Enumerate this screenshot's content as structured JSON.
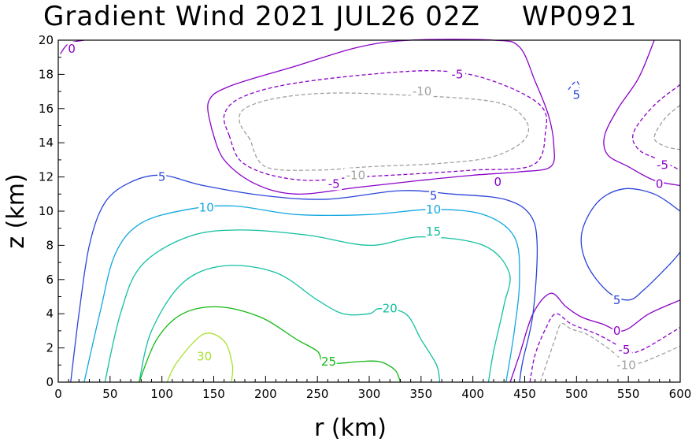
{
  "chart_data": {
    "type": "contour",
    "title": "Gradient Wind 2021 JUL26 02Z",
    "subtitle": "WP0921",
    "xlabel": "r (km)",
    "ylabel": "z (km)",
    "xlim": [
      0,
      600
    ],
    "ylim": [
      0,
      20
    ],
    "xticks": [
      "0",
      "50",
      "100",
      "150",
      "200",
      "250",
      "300",
      "350",
      "400",
      "450",
      "500",
      "550",
      "600"
    ],
    "yticks": [
      "0",
      "2",
      "4",
      "6",
      "8",
      "10",
      "12",
      "14",
      "16",
      "18",
      "20"
    ],
    "grid": false,
    "contour_levels": [
      -10,
      -5,
      0,
      5,
      10,
      15,
      20,
      25,
      30
    ],
    "level_colors": {
      "-10": "#a0a0a0",
      "-5": "#8a00c8",
      "0": "#8a00c8",
      "5": "#2a44d8",
      "10": "#12a8e0",
      "15": "#12c0a0",
      "20": "#12c0a0",
      "25": "#12b812",
      "30": "#a8e030"
    },
    "contours": [
      {
        "level": -10,
        "dashed": true,
        "points": [
          [
            185,
            14.2
          ],
          [
            175,
            15.2
          ],
          [
            180,
            16.0
          ],
          [
            210,
            16.6
          ],
          [
            260,
            16.9
          ],
          [
            330,
            16.8
          ],
          [
            420,
            16.4
          ],
          [
            450,
            15.4
          ],
          [
            450,
            14.2
          ],
          [
            420,
            13.2
          ],
          [
            370,
            12.8
          ],
          [
            300,
            12.6
          ],
          [
            250,
            12.4
          ],
          [
            200,
            12.6
          ],
          [
            185,
            14.2
          ]
        ]
      },
      {
        "level": -10,
        "dashed": true,
        "points": [
          [
            465,
            0
          ],
          [
            478,
            2.3
          ],
          [
            485,
            3.4
          ],
          [
            495,
            3.1
          ],
          [
            510,
            2.8
          ],
          [
            530,
            2.0
          ],
          [
            545,
            1.3
          ],
          [
            560,
            1.1
          ],
          [
            600,
            2.1
          ]
        ]
      },
      {
        "level": -10,
        "dashed": true,
        "points": [
          [
            600,
            16.2
          ],
          [
            585,
            15.4
          ],
          [
            575,
            14.3
          ],
          [
            585,
            13.8
          ],
          [
            600,
            13.6
          ]
        ]
      },
      {
        "level": -5,
        "dashed": true,
        "points": [
          [
            165,
            14.4
          ],
          [
            160,
            15.6
          ],
          [
            175,
            16.6
          ],
          [
            220,
            17.4
          ],
          [
            300,
            18.0
          ],
          [
            370,
            18.2
          ],
          [
            420,
            17.6
          ],
          [
            465,
            16.2
          ],
          [
            470,
            14.6
          ],
          [
            458,
            12.7
          ],
          [
            400,
            12.4
          ],
          [
            350,
            12.2
          ],
          [
            290,
            12.0
          ],
          [
            240,
            11.8
          ],
          [
            200,
            12.2
          ],
          [
            175,
            13.0
          ],
          [
            165,
            14.4
          ]
        ]
      },
      {
        "level": -5,
        "dashed": true,
        "points": [
          [
            455,
            0
          ],
          [
            460,
            1.6
          ],
          [
            470,
            3.1
          ],
          [
            480,
            4.0
          ],
          [
            495,
            3.4
          ],
          [
            520,
            2.8
          ],
          [
            545,
            2.0
          ],
          [
            560,
            1.8
          ],
          [
            600,
            3.2
          ]
        ]
      },
      {
        "level": -5,
        "dashed": true,
        "points": [
          [
            600,
            17.4
          ],
          [
            575,
            16.2
          ],
          [
            555,
            14.6
          ],
          [
            560,
            13.6
          ],
          [
            580,
            13.0
          ],
          [
            600,
            12.4
          ]
        ]
      },
      {
        "level": 0,
        "dashed": false,
        "points": [
          [
            2,
            19.2
          ],
          [
            10,
            19.8
          ],
          [
            25,
            20
          ]
        ]
      },
      {
        "level": 0,
        "dashed": false,
        "points": [
          [
            148,
            14.8
          ],
          [
            145,
            16.4
          ],
          [
            165,
            17.3
          ],
          [
            230,
            18.5
          ],
          [
            290,
            19.6
          ],
          [
            340,
            20
          ],
          [
            420,
            20
          ],
          [
            445,
            19.6
          ],
          [
            460,
            17.6
          ],
          [
            473,
            15.6
          ],
          [
            478,
            13.9
          ],
          [
            475,
            12.6
          ],
          [
            445,
            12.3
          ],
          [
            400,
            12.1
          ],
          [
            350,
            11.8
          ],
          [
            290,
            11.4
          ],
          [
            230,
            11.0
          ],
          [
            190,
            11.6
          ],
          [
            160,
            13.0
          ],
          [
            148,
            14.8
          ]
        ]
      },
      {
        "level": 0,
        "dashed": false,
        "points": [
          [
            436,
            0
          ],
          [
            445,
            1.6
          ],
          [
            458,
            4.0
          ],
          [
            475,
            5.2
          ],
          [
            490,
            4.4
          ],
          [
            505,
            3.8
          ],
          [
            525,
            3.4
          ],
          [
            545,
            3.0
          ],
          [
            570,
            4.0
          ],
          [
            600,
            4.8
          ]
        ]
      },
      {
        "level": 0,
        "dashed": false,
        "points": [
          [
            575,
            20
          ],
          [
            560,
            17.8
          ],
          [
            540,
            16.0
          ],
          [
            527,
            14.4
          ],
          [
            530,
            13.3
          ],
          [
            550,
            12.6
          ],
          [
            575,
            11.8
          ],
          [
            600,
            11.5
          ]
        ]
      },
      {
        "level": 5,
        "dashed": true,
        "points": [
          [
            492,
            17.1
          ],
          [
            500,
            17.6
          ],
          [
            503,
            17.0
          ],
          [
            497,
            16.5
          ]
        ]
      },
      {
        "level": 5,
        "dashed": false,
        "points": [
          [
            12,
            0
          ],
          [
            20,
            4.0
          ],
          [
            30,
            8.0
          ],
          [
            45,
            10.5
          ],
          [
            70,
            11.7
          ],
          [
            100,
            12.1
          ],
          [
            140,
            11.5
          ],
          [
            200,
            10.9
          ],
          [
            260,
            10.7
          ],
          [
            330,
            11.2
          ],
          [
            380,
            11.0
          ],
          [
            430,
            10.7
          ],
          [
            455,
            9.8
          ],
          [
            462,
            8.0
          ],
          [
            458,
            4.0
          ],
          [
            448,
            1.2
          ],
          [
            445,
            0
          ]
        ]
      },
      {
        "level": 5,
        "dashed": false,
        "points": [
          [
            600,
            10.0
          ],
          [
            575,
            11.0
          ],
          [
            545,
            11.3
          ],
          [
            520,
            10.5
          ],
          [
            505,
            8.7
          ],
          [
            510,
            6.9
          ],
          [
            530,
            5.3
          ],
          [
            550,
            4.8
          ],
          [
            565,
            5.4
          ],
          [
            590,
            6.9
          ],
          [
            600,
            7.6
          ]
        ]
      },
      {
        "level": 10,
        "dashed": false,
        "points": [
          [
            25,
            0
          ],
          [
            40,
            4.0
          ],
          [
            55,
            7.5
          ],
          [
            80,
            9.3
          ],
          [
            125,
            10.1
          ],
          [
            170,
            10.3
          ],
          [
            230,
            9.8
          ],
          [
            300,
            9.8
          ],
          [
            360,
            10.1
          ],
          [
            410,
            9.8
          ],
          [
            440,
            8.5
          ],
          [
            445,
            6.0
          ],
          [
            440,
            3.0
          ],
          [
            432,
            0
          ]
        ]
      },
      {
        "level": 10,
        "dashed": false,
        "points": [
          [
            25,
            0
          ]
        ]
      },
      {
        "level": 15,
        "dashed": false,
        "points": [
          [
            45,
            0
          ],
          [
            60,
            4.0
          ],
          [
            80,
            6.8
          ],
          [
            125,
            8.5
          ],
          [
            175,
            8.9
          ],
          [
            240,
            8.6
          ],
          [
            300,
            8.0
          ],
          [
            350,
            8.5
          ],
          [
            410,
            8.0
          ],
          [
            435,
            6.4
          ],
          [
            430,
            4.5
          ],
          [
            420,
            1.8
          ],
          [
            415,
            0
          ]
        ]
      },
      {
        "level": 20,
        "dashed": false,
        "points": [
          [
            78,
            0
          ],
          [
            90,
            3.0
          ],
          [
            120,
            5.8
          ],
          [
            160,
            6.8
          ],
          [
            210,
            6.4
          ],
          [
            250,
            4.8
          ],
          [
            275,
            4.0
          ],
          [
            300,
            4.0
          ],
          [
            310,
            4.3
          ],
          [
            335,
            4.0
          ],
          [
            350,
            2.5
          ],
          [
            365,
            1.0
          ],
          [
            368,
            0
          ]
        ]
      },
      {
        "level": 25,
        "dashed": false,
        "points": [
          [
            78,
            0
          ],
          [
            95,
            2.5
          ],
          [
            120,
            4.0
          ],
          [
            155,
            4.4
          ],
          [
            195,
            3.8
          ],
          [
            230,
            2.5
          ],
          [
            250,
            1.8
          ],
          [
            255,
            1.2
          ],
          [
            270,
            1.1
          ],
          [
            290,
            1.2
          ],
          [
            310,
            1.2
          ],
          [
            325,
            0.7
          ],
          [
            330,
            0
          ]
        ]
      },
      {
        "level": 30,
        "dashed": false,
        "points": [
          [
            105,
            0
          ],
          [
            115,
            1.2
          ],
          [
            140,
            2.8
          ],
          [
            160,
            2.4
          ],
          [
            168,
            1.0
          ],
          [
            167,
            0
          ]
        ]
      }
    ],
    "labels": [
      {
        "text": "0",
        "x": 13,
        "y": 19.5,
        "level": 0
      },
      {
        "text": "-5",
        "x": 385,
        "y": 18.0,
        "level": -5
      },
      {
        "text": "-10",
        "x": 351,
        "y": 17.0,
        "level": -10
      },
      {
        "text": "5",
        "x": 500,
        "y": 16.8,
        "level": 5
      },
      {
        "text": "-10",
        "x": 287,
        "y": 12.1,
        "level": -10
      },
      {
        "text": "-5",
        "x": 266,
        "y": 11.6,
        "level": -5
      },
      {
        "text": "0",
        "x": 424,
        "y": 11.7,
        "level": 0
      },
      {
        "text": "-5",
        "x": 583,
        "y": 12.7,
        "level": -5
      },
      {
        "text": "0",
        "x": 580,
        "y": 11.6,
        "level": 0
      },
      {
        "text": "5",
        "x": 100,
        "y": 12.0,
        "level": 5
      },
      {
        "text": "5",
        "x": 362,
        "y": 10.9,
        "level": 5
      },
      {
        "text": "10",
        "x": 143,
        "y": 10.2,
        "level": 10
      },
      {
        "text": "10",
        "x": 362,
        "y": 10.1,
        "level": 10
      },
      {
        "text": "15",
        "x": 362,
        "y": 8.8,
        "level": 15
      },
      {
        "text": "20",
        "x": 320,
        "y": 4.3,
        "level": 20
      },
      {
        "text": "25",
        "x": 261,
        "y": 1.2,
        "level": 25
      },
      {
        "text": "30",
        "x": 141,
        "y": 1.5,
        "level": 30
      },
      {
        "text": "5",
        "x": 539,
        "y": 4.8,
        "level": 5
      },
      {
        "text": "0",
        "x": 539,
        "y": 3.0,
        "level": 0
      },
      {
        "text": "-5",
        "x": 546,
        "y": 1.9,
        "level": -5
      },
      {
        "text": "-10",
        "x": 548,
        "y": 1.0,
        "level": -10
      }
    ]
  }
}
